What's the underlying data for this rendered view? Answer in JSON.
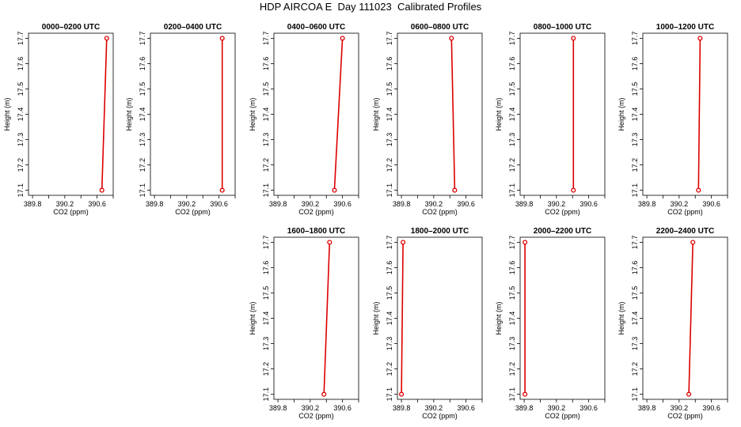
{
  "figure_title": "HDP AIRCOA E  Day 111023  Calibrated Profiles",
  "colors": {
    "profile": "#dd0000",
    "axis": "#000000"
  },
  "chart_data": [
    {
      "type": "line",
      "title": "0000–0200 UTC",
      "xlabel": "CO2 (ppm)",
      "ylabel": "Height (m)",
      "xlim": [
        389.75,
        390.8
      ],
      "ylim": [
        17.08,
        17.72
      ],
      "xticks": [
        "389.8",
        "390.2",
        "390.6"
      ],
      "yticks": [
        "17.1",
        "17.2",
        "17.3",
        "17.4",
        "17.5",
        "17.6",
        "17.7"
      ],
      "series": [
        {
          "x": [
            390.66,
            390.72
          ],
          "y": [
            17.1,
            17.7
          ]
        }
      ]
    },
    {
      "type": "line",
      "title": "0200–0400 UTC",
      "xlabel": "CO2 (ppm)",
      "ylabel": "Height (m)",
      "xlim": [
        389.75,
        390.8
      ],
      "ylim": [
        17.08,
        17.72
      ],
      "xticks": [
        "389.8",
        "390.2",
        "390.6"
      ],
      "yticks": [
        "17.1",
        "17.2",
        "17.3",
        "17.4",
        "17.5",
        "17.6",
        "17.7"
      ],
      "series": [
        {
          "x": [
            390.64,
            390.64
          ],
          "y": [
            17.1,
            17.7
          ]
        }
      ]
    },
    {
      "type": "line",
      "title": "0400–0600 UTC",
      "xlabel": "CO2 (ppm)",
      "ylabel": "Height (m)",
      "xlim": [
        389.75,
        390.8
      ],
      "ylim": [
        17.08,
        17.72
      ],
      "xticks": [
        "389.8",
        "390.2",
        "390.6"
      ],
      "yticks": [
        "17.1",
        "17.2",
        "17.3",
        "17.4",
        "17.5",
        "17.6",
        "17.7"
      ],
      "series": [
        {
          "x": [
            390.5,
            390.6
          ],
          "y": [
            17.1,
            17.7
          ]
        }
      ]
    },
    {
      "type": "line",
      "title": "0600–0800 UTC",
      "xlabel": "CO2 (ppm)",
      "ylabel": "Height (m)",
      "xlim": [
        389.75,
        390.8
      ],
      "ylim": [
        17.08,
        17.72
      ],
      "xticks": [
        "389.8",
        "390.2",
        "390.6"
      ],
      "yticks": [
        "17.1",
        "17.2",
        "17.3",
        "17.4",
        "17.5",
        "17.6",
        "17.7"
      ],
      "series": [
        {
          "x": [
            390.46,
            390.42
          ],
          "y": [
            17.1,
            17.7
          ]
        }
      ]
    },
    {
      "type": "line",
      "title": "0800–1000 UTC",
      "xlabel": "CO2 (ppm)",
      "ylabel": "Height (m)",
      "xlim": [
        389.75,
        390.8
      ],
      "ylim": [
        17.08,
        17.72
      ],
      "xticks": [
        "389.8",
        "390.2",
        "390.6"
      ],
      "yticks": [
        "17.1",
        "17.2",
        "17.3",
        "17.4",
        "17.5",
        "17.6",
        "17.7"
      ],
      "series": [
        {
          "x": [
            390.41,
            390.41
          ],
          "y": [
            17.1,
            17.7
          ]
        }
      ]
    },
    {
      "type": "line",
      "title": "1000–1200 UTC",
      "xlabel": "CO2 (ppm)",
      "ylabel": "Height (m)",
      "xlim": [
        389.75,
        390.8
      ],
      "ylim": [
        17.08,
        17.72
      ],
      "xticks": [
        "389.8",
        "390.2",
        "390.6"
      ],
      "yticks": [
        "17.1",
        "17.2",
        "17.3",
        "17.4",
        "17.5",
        "17.6",
        "17.7"
      ],
      "series": [
        {
          "x": [
            390.44,
            390.46
          ],
          "y": [
            17.1,
            17.7
          ]
        }
      ]
    },
    {
      "type": "line",
      "title": "1600–1800 UTC",
      "xlabel": "CO2 (ppm)",
      "ylabel": "Height (m)",
      "xlim": [
        389.75,
        390.8
      ],
      "ylim": [
        17.08,
        17.72
      ],
      "xticks": [
        "389.8",
        "390.2",
        "390.6"
      ],
      "yticks": [
        "17.1",
        "17.2",
        "17.3",
        "17.4",
        "17.5",
        "17.6",
        "17.7"
      ],
      "series": [
        {
          "x": [
            390.37,
            390.44
          ],
          "y": [
            17.1,
            17.7
          ]
        }
      ]
    },
    {
      "type": "line",
      "title": "1800–2000 UTC",
      "xlabel": "CO2 (ppm)",
      "ylabel": "Height (m)",
      "xlim": [
        389.75,
        390.8
      ],
      "ylim": [
        17.08,
        17.72
      ],
      "xticks": [
        "389.8",
        "390.2",
        "390.6"
      ],
      "yticks": [
        "17.1",
        "17.2",
        "17.3",
        "17.4",
        "17.5",
        "17.6",
        "17.7"
      ],
      "series": [
        {
          "x": [
            389.8,
            389.82
          ],
          "y": [
            17.1,
            17.7
          ]
        }
      ]
    },
    {
      "type": "line",
      "title": "2000–2200 UTC",
      "xlabel": "CO2 (ppm)",
      "ylabel": "Height (m)",
      "xlim": [
        389.75,
        390.8
      ],
      "ylim": [
        17.08,
        17.72
      ],
      "xticks": [
        "389.8",
        "390.2",
        "390.6"
      ],
      "yticks": [
        "17.1",
        "17.2",
        "17.3",
        "17.4",
        "17.5",
        "17.6",
        "17.7"
      ],
      "series": [
        {
          "x": [
            389.81,
            389.81
          ],
          "y": [
            17.1,
            17.7
          ]
        }
      ]
    },
    {
      "type": "line",
      "title": "2200–2400 UTC",
      "xlabel": "CO2 (ppm)",
      "ylabel": "Height (m)",
      "xlim": [
        389.75,
        390.8
      ],
      "ylim": [
        17.08,
        17.72
      ],
      "xticks": [
        "389.8",
        "390.2",
        "390.6"
      ],
      "yticks": [
        "17.1",
        "17.2",
        "17.3",
        "17.4",
        "17.5",
        "17.6",
        "17.7"
      ],
      "series": [
        {
          "x": [
            390.32,
            390.37
          ],
          "y": [
            17.1,
            17.7
          ]
        }
      ]
    }
  ]
}
